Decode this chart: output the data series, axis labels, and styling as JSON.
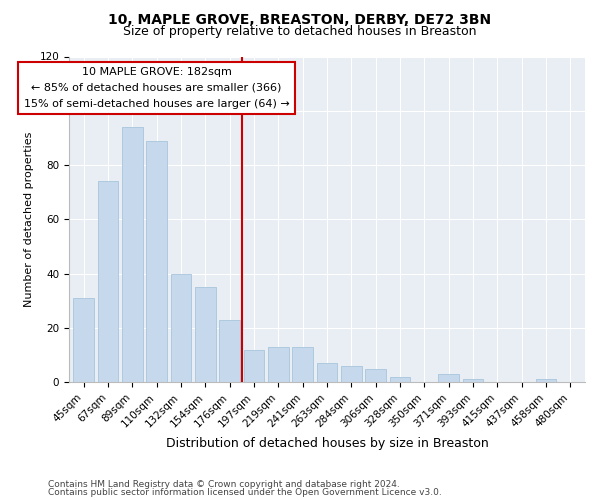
{
  "title": "10, MAPLE GROVE, BREASTON, DERBY, DE72 3BN",
  "subtitle": "Size of property relative to detached houses in Breaston",
  "xlabel": "Distribution of detached houses by size in Breaston",
  "ylabel": "Number of detached properties",
  "bar_labels": [
    "45sqm",
    "67sqm",
    "89sqm",
    "110sqm",
    "132sqm",
    "154sqm",
    "176sqm",
    "197sqm",
    "219sqm",
    "241sqm",
    "263sqm",
    "284sqm",
    "306sqm",
    "328sqm",
    "350sqm",
    "371sqm",
    "393sqm",
    "415sqm",
    "437sqm",
    "458sqm",
    "480sqm"
  ],
  "bar_values": [
    31,
    74,
    94,
    89,
    40,
    35,
    23,
    12,
    13,
    13,
    7,
    6,
    5,
    2,
    0,
    3,
    1,
    0,
    0,
    1,
    0
  ],
  "bar_color": "#c6d9ec",
  "bar_edge_color": "#a8c4dc",
  "vline_x_index": 6.5,
  "vline_color": "#cc0000",
  "annotation_title": "10 MAPLE GROVE: 182sqm",
  "annotation_line1": "← 85% of detached houses are smaller (366)",
  "annotation_line2": "15% of semi-detached houses are larger (64) →",
  "annotation_box_facecolor": "#ffffff",
  "annotation_box_edgecolor": "#cc0000",
  "ylim": [
    0,
    120
  ],
  "yticks": [
    0,
    20,
    40,
    60,
    80,
    100,
    120
  ],
  "footer1": "Contains HM Land Registry data © Crown copyright and database right 2024.",
  "footer2": "Contains public sector information licensed under the Open Government Licence v3.0.",
  "bg_color": "#ffffff",
  "plot_bg_color": "#e8eef4",
  "grid_color": "#ffffff",
  "title_fontsize": 10,
  "subtitle_fontsize": 9,
  "ylabel_fontsize": 8,
  "xlabel_fontsize": 9,
  "tick_fontsize": 7.5,
  "footer_fontsize": 6.5
}
